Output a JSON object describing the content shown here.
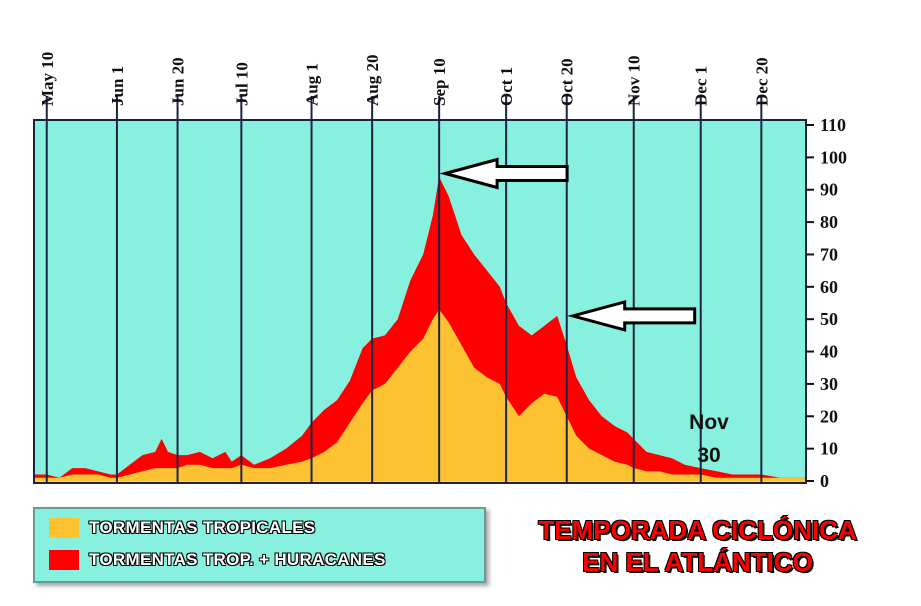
{
  "colors": {
    "plot_background": "#88f0de",
    "tropical_storms": "#fdc232",
    "storms_plus_hurricanes": "#ff0000",
    "gridlines": "#1b2340",
    "title_text": "#ff0000"
  },
  "title": {
    "line1": "TEMPORADA CICLÓNICA",
    "line2": "EN EL ATLÁNTICO"
  },
  "annotation": {
    "line1": "Nov",
    "line2": "30"
  },
  "legend": {
    "items": [
      {
        "label": "TORMENTAS TROPICALES",
        "color": "#fdc232"
      },
      {
        "label": "TORMENTAS TROP. + HURACANES",
        "color": "#ff0000"
      }
    ]
  },
  "chart_data": {
    "type": "area",
    "x_ticks": [
      "May 10",
      "Jun 1",
      "Jun 20",
      "Jul 10",
      "Aug 1",
      "Aug 20",
      "Sep 10",
      "Oct 1",
      "Oct 20",
      "Nov 10",
      "Dec 1",
      "Dec 20"
    ],
    "x_tick_days": [
      130,
      152,
      171,
      191,
      213,
      232,
      253,
      274,
      293,
      314,
      335,
      354
    ],
    "xlim": [
      126,
      368
    ],
    "ylim": [
      0,
      110
    ],
    "y_ticks": [
      0,
      10,
      20,
      30,
      40,
      50,
      60,
      70,
      80,
      90,
      100,
      110
    ],
    "x_axis_position": "top",
    "y_axis_position": "right",
    "grid": "vertical",
    "legend_position": "bottom-left",
    "series": [
      {
        "name": "TORMENTAS TROP. + HURACANES",
        "x": [
          126,
          130,
          134,
          138,
          142,
          146,
          150,
          152,
          156,
          160,
          164,
          166,
          168,
          171,
          174,
          178,
          182,
          186,
          188,
          191,
          195,
          200,
          205,
          210,
          213,
          217,
          221,
          225,
          229,
          232,
          236,
          240,
          244,
          248,
          251,
          253,
          256,
          260,
          264,
          268,
          272,
          274,
          278,
          282,
          286,
          290,
          293,
          296,
          300,
          304,
          308,
          312,
          314,
          318,
          322,
          326,
          330,
          335,
          340,
          345,
          350,
          354,
          360,
          368
        ],
        "values": [
          2,
          2,
          1,
          4,
          4,
          3,
          2,
          2,
          5,
          8,
          9,
          13,
          9,
          8,
          8,
          9,
          7,
          9,
          6,
          8,
          5,
          7,
          10,
          14,
          18,
          22,
          25,
          31,
          41,
          44,
          45,
          50,
          62,
          70,
          82,
          94,
          88,
          76,
          70,
          65,
          60,
          55,
          48,
          45,
          48,
          51,
          42,
          32,
          25,
          20,
          17,
          15,
          13,
          9,
          8,
          7,
          5,
          4,
          3,
          2,
          2,
          2,
          1,
          1
        ]
      },
      {
        "name": "TORMENTAS TROPICALES",
        "x": [
          126,
          130,
          134,
          138,
          142,
          146,
          150,
          152,
          156,
          160,
          164,
          166,
          168,
          171,
          174,
          178,
          182,
          186,
          188,
          191,
          195,
          200,
          205,
          210,
          213,
          217,
          221,
          225,
          229,
          232,
          236,
          240,
          244,
          248,
          251,
          253,
          256,
          260,
          264,
          268,
          272,
          274,
          278,
          282,
          286,
          290,
          293,
          296,
          300,
          304,
          308,
          312,
          314,
          318,
          322,
          326,
          330,
          335,
          340,
          345,
          350,
          354,
          360,
          368
        ],
        "values": [
          1,
          1,
          1,
          2,
          2,
          2,
          1,
          1,
          2,
          3,
          4,
          4,
          4,
          4,
          5,
          5,
          4,
          4,
          4,
          5,
          4,
          4,
          5,
          6,
          7,
          9,
          12,
          18,
          24,
          28,
          30,
          35,
          40,
          44,
          50,
          53,
          49,
          42,
          35,
          32,
          30,
          26,
          20,
          24,
          27,
          26,
          20,
          14,
          10,
          8,
          6,
          5,
          4,
          3,
          3,
          2,
          2,
          2,
          1,
          1,
          1,
          1,
          1,
          1
        ]
      }
    ],
    "annotations": [
      {
        "text": "Nov 30",
        "x": 334,
        "y": 12
      },
      {
        "type": "arrow",
        "points_to": {
          "x": 253,
          "y": 95
        }
      },
      {
        "type": "arrow",
        "points_to": {
          "x": 293,
          "y": 51
        }
      }
    ]
  }
}
